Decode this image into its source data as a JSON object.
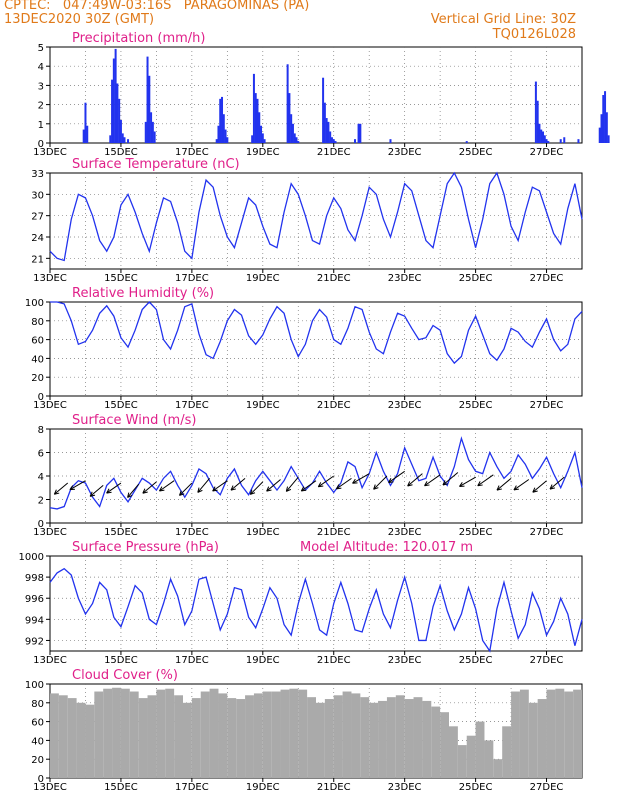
{
  "header": {
    "line1_left": "CPTEC:   047:49W-03:16S   PARAGOMINAS (PA)",
    "line2_left": "13DEC2020 30Z (GMT)",
    "line1_right": "Vertical Grid Line: 30Z",
    "line2_right": "TQ0126L028"
  },
  "colors": {
    "line": "#2233ee",
    "bar": "#2233ee",
    "cloud": "#aaaaaa",
    "title": "#e0208a",
    "header": "#e07a1a"
  },
  "chart_data": [
    {
      "type": "bar",
      "title": "Precipitation (mm/h)",
      "ylim": [
        0,
        5
      ],
      "yticks": [
        "0",
        "1",
        "2",
        "3",
        "4",
        "5"
      ],
      "xticks": [
        "13DEC",
        "15DEC",
        "17DEC",
        "19DEC",
        "21DEC",
        "23DEC",
        "25DEC",
        "27DEC"
      ],
      "x_unit": "days since 13DEC 00Z",
      "x": [
        0.95,
        1.0,
        1.05,
        1.7,
        1.75,
        1.8,
        1.85,
        1.9,
        1.95,
        2.0,
        2.05,
        2.1,
        2.2,
        2.7,
        2.75,
        2.8,
        2.85,
        2.9,
        2.95,
        4.7,
        4.75,
        4.8,
        4.85,
        4.9,
        4.95,
        5.0,
        5.7,
        5.75,
        5.8,
        5.85,
        5.9,
        5.95,
        6.0,
        6.05,
        6.7,
        6.75,
        6.8,
        6.85,
        6.9,
        6.95,
        7.0,
        7.7,
        7.75,
        7.8,
        7.85,
        7.9,
        7.95,
        8.0,
        8.05,
        8.6,
        8.7,
        8.75,
        9.6,
        11.75,
        13.7,
        13.75,
        13.8,
        13.85,
        13.9,
        13.95,
        14.0,
        14.05,
        14.4,
        14.5,
        14.9,
        15.5,
        15.55,
        15.6,
        15.65,
        15.7,
        15.75
      ],
      "values": [
        0.7,
        2.1,
        0.9,
        0.4,
        3.3,
        4.4,
        4.9,
        3.1,
        2.3,
        1.2,
        0.5,
        0.3,
        0.2,
        1.1,
        4.5,
        3.5,
        1.6,
        1.1,
        0.6,
        0.2,
        0.9,
        2.3,
        2.4,
        1.5,
        0.7,
        0.3,
        0.4,
        3.6,
        2.6,
        2.3,
        1.6,
        0.9,
        0.5,
        0.2,
        4.1,
        2.6,
        1.5,
        1.0,
        0.5,
        0.3,
        0.1,
        3.4,
        2.1,
        1.3,
        1.1,
        0.6,
        0.3,
        0.2,
        0.1,
        0.2,
        1.0,
        1.0,
        0.2,
        0.1,
        3.2,
        2.2,
        1.0,
        0.7,
        0.6,
        0.4,
        0.2,
        0.1,
        0.2,
        0.3,
        0.2,
        0.8,
        1.5,
        2.5,
        2.7,
        1.6,
        0.4
      ]
    },
    {
      "type": "line",
      "title": "Surface Temperature (nC)",
      "ylim": [
        19.5,
        33
      ],
      "yticks": [
        "21",
        "24",
        "27",
        "30",
        "33"
      ],
      "xticks": [
        "13DEC",
        "15DEC",
        "17DEC",
        "19DEC",
        "21DEC",
        "23DEC",
        "25DEC",
        "27DEC"
      ],
      "x": [
        0,
        0.2,
        0.4,
        0.6,
        0.8,
        1.0,
        1.2,
        1.4,
        1.6,
        1.8,
        2.0,
        2.2,
        2.4,
        2.6,
        2.8,
        3.0,
        3.2,
        3.4,
        3.6,
        3.8,
        4.0,
        4.2,
        4.4,
        4.6,
        4.8,
        5.0,
        5.2,
        5.4,
        5.6,
        5.8,
        6.0,
        6.2,
        6.4,
        6.6,
        6.8,
        7.0,
        7.2,
        7.4,
        7.6,
        7.8,
        8.0,
        8.2,
        8.4,
        8.6,
        8.8,
        9.0,
        9.2,
        9.4,
        9.6,
        9.8,
        10.0,
        10.2,
        10.4,
        10.6,
        10.8,
        11.0,
        11.2,
        11.4,
        11.6,
        11.8,
        12.0,
        12.2,
        12.4,
        12.6,
        12.8,
        13.0,
        13.2,
        13.4,
        13.6,
        13.8,
        14.0,
        14.2,
        14.4,
        14.6,
        14.8,
        15.0
      ],
      "values": [
        22.0,
        21.0,
        20.7,
        26.5,
        30.0,
        29.5,
        27.0,
        23.5,
        22.0,
        24.0,
        28.5,
        30.0,
        27.5,
        24.5,
        22.0,
        26.0,
        29.5,
        29.0,
        26.0,
        22.0,
        21.0,
        27.5,
        32.0,
        31.0,
        27.0,
        24.0,
        22.5,
        26.0,
        29.5,
        28.5,
        25.5,
        23.0,
        22.5,
        27.5,
        31.5,
        30.0,
        27.0,
        23.5,
        23.0,
        27.0,
        29.5,
        28.0,
        25.0,
        23.5,
        27.0,
        31.0,
        30.0,
        26.5,
        24.0,
        27.5,
        31.5,
        30.5,
        27.0,
        23.5,
        22.5,
        27.0,
        31.5,
        33.0,
        31.0,
        26.5,
        22.5,
        26.5,
        31.5,
        33.0,
        30.0,
        25.5,
        23.5,
        27.5,
        31.0,
        30.5,
        27.5,
        24.5,
        23.0,
        28.0,
        31.5,
        26.5
      ]
    },
    {
      "type": "line",
      "title": "Relative Humidity (%)",
      "ylim": [
        0,
        100
      ],
      "yticks": [
        "0",
        "20",
        "40",
        "60",
        "80",
        "100"
      ],
      "xticks": [
        "13DEC",
        "15DEC",
        "17DEC",
        "19DEC",
        "21DEC",
        "23DEC",
        "25DEC",
        "27DEC"
      ],
      "x": [
        0,
        0.2,
        0.4,
        0.6,
        0.8,
        1.0,
        1.2,
        1.4,
        1.6,
        1.8,
        2.0,
        2.2,
        2.4,
        2.6,
        2.8,
        3.0,
        3.2,
        3.4,
        3.6,
        3.8,
        4.0,
        4.2,
        4.4,
        4.6,
        4.8,
        5.0,
        5.2,
        5.4,
        5.6,
        5.8,
        6.0,
        6.2,
        6.4,
        6.6,
        6.8,
        7.0,
        7.2,
        7.4,
        7.6,
        7.8,
        8.0,
        8.2,
        8.4,
        8.6,
        8.8,
        9.0,
        9.2,
        9.4,
        9.6,
        9.8,
        10.0,
        10.2,
        10.4,
        10.6,
        10.8,
        11.0,
        11.2,
        11.4,
        11.6,
        11.8,
        12.0,
        12.2,
        12.4,
        12.6,
        12.8,
        13.0,
        13.2,
        13.4,
        13.6,
        13.8,
        14.0,
        14.2,
        14.4,
        14.6,
        14.8,
        15.0
      ],
      "values": [
        100,
        100,
        98,
        80,
        55,
        58,
        70,
        88,
        96,
        85,
        62,
        52,
        70,
        92,
        100,
        92,
        60,
        50,
        70,
        95,
        98,
        66,
        44,
        40,
        58,
        80,
        92,
        86,
        64,
        55,
        65,
        82,
        95,
        88,
        60,
        42,
        55,
        80,
        92,
        84,
        60,
        55,
        72,
        95,
        92,
        68,
        50,
        45,
        68,
        88,
        85,
        72,
        60,
        62,
        75,
        70,
        45,
        35,
        42,
        70,
        85,
        65,
        45,
        38,
        50,
        72,
        68,
        58,
        52,
        68,
        82,
        60,
        48,
        55,
        82,
        90
      ]
    },
    {
      "type": "line",
      "title": "Surface Wind (m/s)",
      "ylim": [
        0,
        8
      ],
      "yticks": [
        "0",
        "2",
        "4",
        "6",
        "8"
      ],
      "xticks": [
        "13DEC",
        "15DEC",
        "17DEC",
        "19DEC",
        "21DEC",
        "23DEC",
        "25DEC",
        "27DEC"
      ],
      "x": [
        0,
        0.2,
        0.4,
        0.6,
        0.8,
        1.0,
        1.2,
        1.4,
        1.6,
        1.8,
        2.0,
        2.2,
        2.4,
        2.6,
        2.8,
        3.0,
        3.2,
        3.4,
        3.6,
        3.8,
        4.0,
        4.2,
        4.4,
        4.6,
        4.8,
        5.0,
        5.2,
        5.4,
        5.6,
        5.8,
        6.0,
        6.2,
        6.4,
        6.6,
        6.8,
        7.0,
        7.2,
        7.4,
        7.6,
        7.8,
        8.0,
        8.2,
        8.4,
        8.6,
        8.8,
        9.0,
        9.2,
        9.4,
        9.6,
        9.8,
        10.0,
        10.2,
        10.4,
        10.6,
        10.8,
        11.0,
        11.2,
        11.4,
        11.6,
        11.8,
        12.0,
        12.2,
        12.4,
        12.6,
        12.8,
        13.0,
        13.2,
        13.4,
        13.6,
        13.8,
        14.0,
        14.2,
        14.4,
        14.6,
        14.8,
        15.0
      ],
      "values": [
        1.3,
        1.2,
        1.4,
        3.0,
        3.6,
        3.4,
        2.2,
        1.4,
        3.2,
        3.8,
        2.6,
        1.8,
        2.8,
        3.8,
        3.4,
        2.8,
        3.8,
        4.4,
        3.2,
        2.2,
        3.2,
        4.6,
        4.2,
        3.0,
        2.4,
        3.8,
        4.6,
        3.2,
        2.4,
        3.6,
        4.4,
        3.6,
        2.8,
        3.6,
        4.8,
        3.8,
        2.8,
        3.4,
        4.4,
        3.4,
        2.6,
        3.4,
        5.2,
        4.8,
        3.0,
        4.2,
        6.0,
        4.4,
        3.2,
        4.2,
        6.4,
        5.0,
        3.6,
        3.8,
        5.6,
        4.0,
        3.2,
        4.8,
        7.2,
        5.4,
        4.4,
        4.2,
        6.0,
        4.8,
        3.8,
        4.4,
        5.8,
        5.0,
        3.8,
        4.6,
        5.6,
        4.2,
        3.0,
        4.4,
        6.0,
        3.0
      ],
      "arrows": [
        [
          0.5,
          3.4,
          220
        ],
        [
          1.0,
          3.6,
          210
        ],
        [
          1.5,
          3.2,
          220
        ],
        [
          2.0,
          3.4,
          215
        ],
        [
          2.5,
          3.3,
          230
        ],
        [
          3.0,
          3.5,
          220
        ],
        [
          3.5,
          3.6,
          215
        ],
        [
          4.0,
          3.4,
          225
        ],
        [
          4.5,
          3.8,
          230
        ],
        [
          5.0,
          3.6,
          215
        ],
        [
          5.5,
          3.8,
          220
        ],
        [
          6.0,
          3.5,
          225
        ],
        [
          6.5,
          3.7,
          220
        ],
        [
          7.0,
          3.9,
          230
        ],
        [
          7.5,
          3.6,
          215
        ],
        [
          8.0,
          4.0,
          215
        ],
        [
          8.5,
          3.8,
          215
        ],
        [
          9.0,
          4.2,
          210
        ],
        [
          9.5,
          4.0,
          225
        ],
        [
          10.0,
          4.4,
          215
        ],
        [
          10.5,
          4.2,
          220
        ],
        [
          11.0,
          4.1,
          215
        ],
        [
          11.5,
          4.3,
          220
        ],
        [
          12.0,
          3.9,
          210
        ],
        [
          12.5,
          4.1,
          215
        ],
        [
          13.0,
          3.8,
          220
        ],
        [
          13.5,
          3.7,
          215
        ],
        [
          14.0,
          3.6,
          220
        ],
        [
          14.5,
          3.9,
          220
        ]
      ]
    },
    {
      "type": "line",
      "title": "Surface Pressure (hPa)",
      "annotation": "Model Altitude: 120.017 m",
      "ylim": [
        991,
        1000
      ],
      "yticks": [
        "992",
        "994",
        "996",
        "998",
        "1000"
      ],
      "xticks": [
        "13DEC",
        "15DEC",
        "17DEC",
        "19DEC",
        "21DEC",
        "23DEC",
        "25DEC",
        "27DEC"
      ],
      "x": [
        0,
        0.2,
        0.4,
        0.6,
        0.8,
        1.0,
        1.2,
        1.4,
        1.6,
        1.8,
        2.0,
        2.2,
        2.4,
        2.6,
        2.8,
        3.0,
        3.2,
        3.4,
        3.6,
        3.8,
        4.0,
        4.2,
        4.4,
        4.6,
        4.8,
        5.0,
        5.2,
        5.4,
        5.6,
        5.8,
        6.0,
        6.2,
        6.4,
        6.6,
        6.8,
        7.0,
        7.2,
        7.4,
        7.6,
        7.8,
        8.0,
        8.2,
        8.4,
        8.6,
        8.8,
        9.0,
        9.2,
        9.4,
        9.6,
        9.8,
        10.0,
        10.2,
        10.4,
        10.6,
        10.8,
        11.0,
        11.2,
        11.4,
        11.6,
        11.8,
        12.0,
        12.2,
        12.4,
        12.6,
        12.8,
        13.0,
        13.2,
        13.4,
        13.6,
        13.8,
        14.0,
        14.2,
        14.4,
        14.6,
        14.8,
        15.0
      ],
      "values": [
        997.5,
        998.4,
        998.8,
        998.2,
        996.0,
        994.5,
        995.5,
        997.5,
        996.8,
        994.2,
        993.3,
        995.2,
        997.2,
        996.5,
        994.0,
        993.5,
        995.5,
        997.8,
        996.2,
        993.5,
        994.8,
        997.8,
        998.0,
        995.5,
        993.0,
        994.5,
        997.0,
        996.8,
        994.2,
        993.2,
        995.0,
        997.0,
        996.0,
        993.5,
        992.5,
        995.5,
        997.8,
        995.5,
        993.0,
        992.5,
        995.5,
        997.5,
        995.5,
        993.0,
        992.8,
        995.0,
        996.8,
        994.5,
        993.2,
        995.8,
        998.0,
        995.5,
        992.0,
        992.0,
        995.2,
        997.2,
        994.8,
        993.0,
        994.5,
        997.0,
        995.0,
        992.0,
        991.0,
        995.0,
        997.5,
        994.8,
        992.2,
        993.5,
        996.5,
        995.0,
        992.5,
        993.8,
        996.0,
        994.5,
        991.5,
        994.0
      ]
    },
    {
      "type": "bar",
      "title": "Cloud Cover (%)",
      "ylim": [
        0,
        100
      ],
      "yticks": [
        "0",
        "20",
        "40",
        "60",
        "80",
        "100"
      ],
      "xticks": [
        "13DEC",
        "15DEC",
        "17DEC",
        "19DEC",
        "21DEC",
        "23DEC",
        "25DEC",
        "27DEC"
      ],
      "x": [
        0,
        0.25,
        0.5,
        0.75,
        1.0,
        1.25,
        1.5,
        1.75,
        2.0,
        2.25,
        2.5,
        2.75,
        3.0,
        3.25,
        3.5,
        3.75,
        4.0,
        4.25,
        4.5,
        4.75,
        5.0,
        5.25,
        5.5,
        5.75,
        6.0,
        6.25,
        6.5,
        6.75,
        7.0,
        7.25,
        7.5,
        7.75,
        8.0,
        8.25,
        8.5,
        8.75,
        9.0,
        9.25,
        9.5,
        9.75,
        10.0,
        10.25,
        10.5,
        10.75,
        11.0,
        11.25,
        11.5,
        11.75,
        12.0,
        12.25,
        12.5,
        12.75,
        13.0,
        13.25,
        13.5,
        13.75,
        14.0,
        14.25,
        14.5,
        14.75
      ],
      "values": [
        90,
        88,
        85,
        80,
        78,
        92,
        95,
        96,
        95,
        92,
        85,
        88,
        94,
        95,
        88,
        80,
        85,
        92,
        95,
        90,
        85,
        84,
        88,
        90,
        92,
        92,
        94,
        95,
        94,
        86,
        80,
        84,
        88,
        92,
        90,
        86,
        80,
        82,
        86,
        88,
        84,
        86,
        82,
        76,
        70,
        55,
        35,
        45,
        60,
        40,
        20,
        55,
        92,
        94,
        80,
        84,
        94,
        95,
        92,
        94
      ]
    }
  ]
}
